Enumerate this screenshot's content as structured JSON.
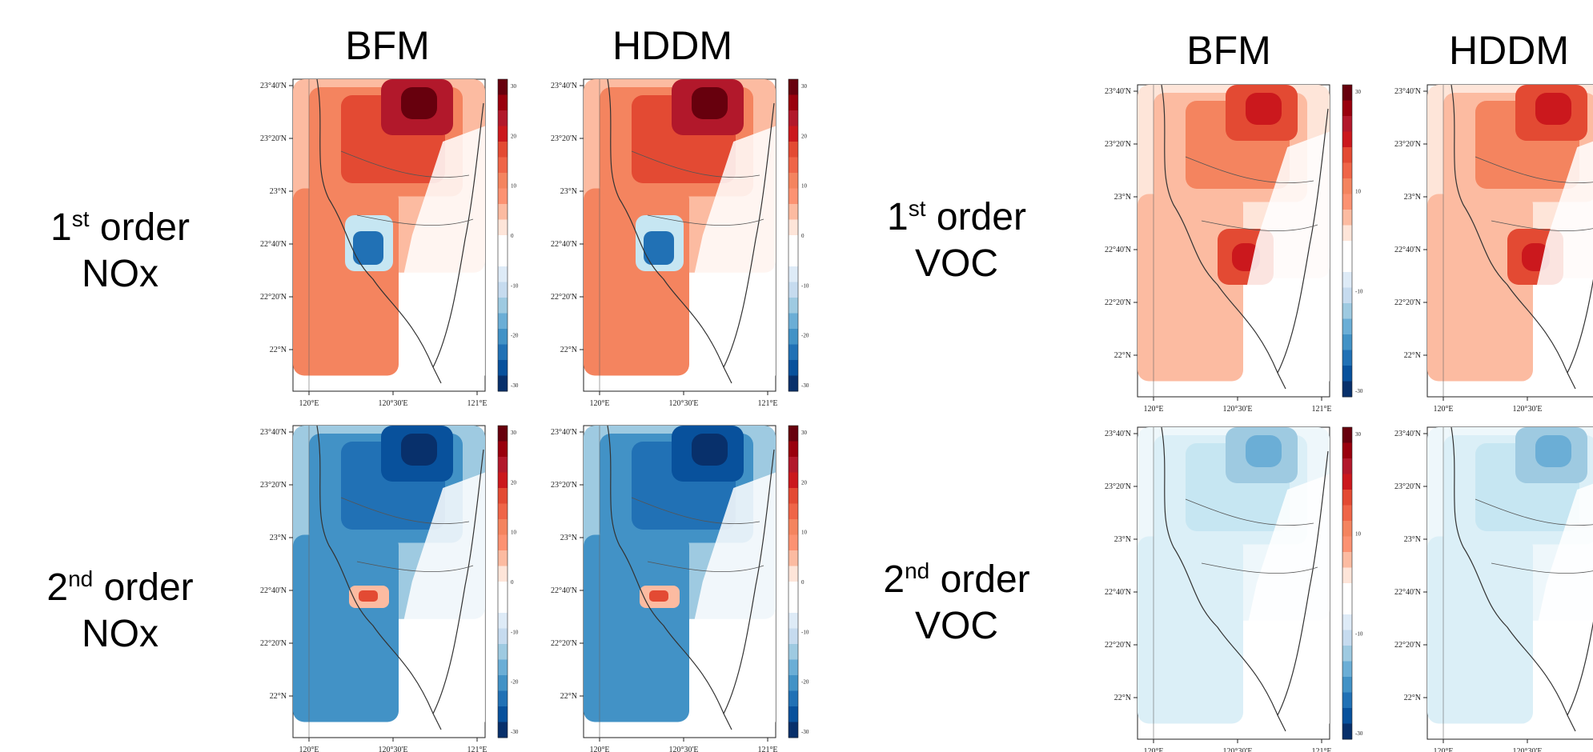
{
  "column_titles": [
    "BFM",
    "HDDM",
    "BFM",
    "HDDM"
  ],
  "row_labels": [
    {
      "ord": "1",
      "sup": "st",
      "word": "order",
      "species": "NOx"
    },
    {
      "ord": "2",
      "sup": "nd",
      "word": "order",
      "species": "NOx"
    },
    {
      "ord": "1",
      "sup": "st",
      "word": "order",
      "species": "VOC"
    },
    {
      "ord": "2",
      "sup": "nd",
      "word": "order",
      "species": "VOC"
    }
  ],
  "lat_ticks": [
    "23°40'N",
    "23°20'N",
    "23°N",
    "22°40'N",
    "22°20'N",
    "22°N"
  ],
  "lon_ticks": [
    "120°E",
    "120°30'E",
    "121°E"
  ],
  "colorbar_ticks": [
    "30",
    "20",
    "10",
    "0",
    "-10",
    "-20",
    "-30"
  ],
  "colorbar_ticks_sparse": [
    "30",
    "10",
    "-10",
    "-30"
  ],
  "colors": {
    "dark_red": "#67000d",
    "red": "#e34a33",
    "light_red": "#fcbba1",
    "white": "#ffffff",
    "light_blue": "#c6e6f2",
    "blue": "#4292c6",
    "dark_blue": "#08306b"
  },
  "panels": [
    {
      "id": "nox1-bfm",
      "theme": "red",
      "hot_blue": true
    },
    {
      "id": "nox1-hddm",
      "theme": "red",
      "hot_blue": true
    },
    {
      "id": "nox2-bfm",
      "theme": "blue",
      "hot_red": true
    },
    {
      "id": "nox2-hddm",
      "theme": "blue",
      "hot_red": true
    },
    {
      "id": "voc1-bfm",
      "theme": "light_red"
    },
    {
      "id": "voc1-hddm",
      "theme": "light_red"
    },
    {
      "id": "voc2-bfm",
      "theme": "light_blue"
    },
    {
      "id": "voc2-hddm",
      "theme": "light_blue"
    }
  ]
}
